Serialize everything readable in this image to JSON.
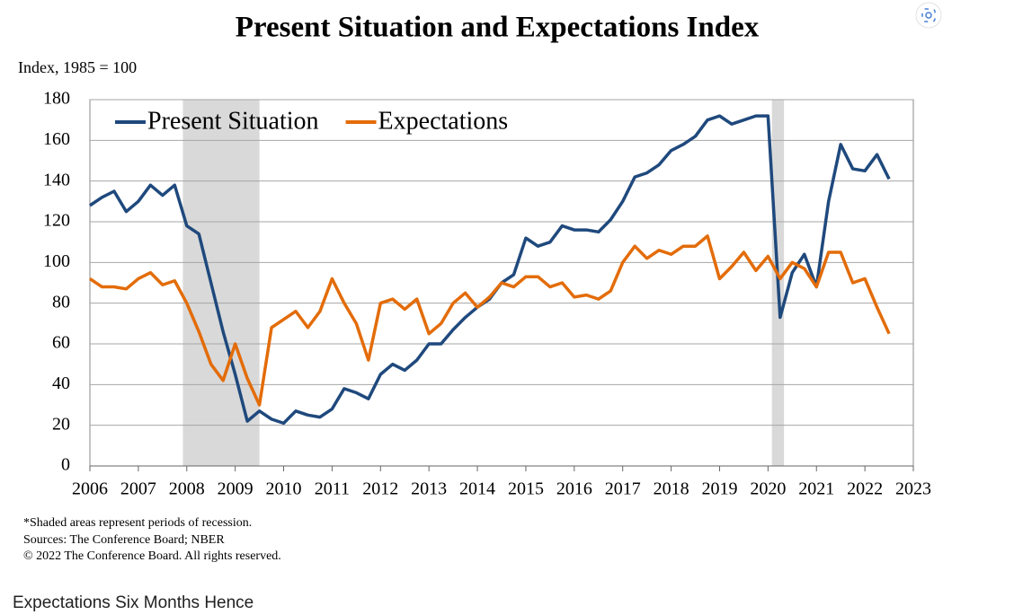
{
  "chart_data": {
    "type": "line",
    "title": "Present Situation and Expectations Index",
    "y_label": "Index, 1985 = 100",
    "x": [
      2006,
      2006.25,
      2006.5,
      2006.75,
      2007,
      2007.25,
      2007.5,
      2007.75,
      2008,
      2008.25,
      2008.5,
      2008.75,
      2009,
      2009.25,
      2009.5,
      2009.75,
      2010,
      2010.25,
      2010.5,
      2010.75,
      2011,
      2011.25,
      2011.5,
      2011.75,
      2012,
      2012.25,
      2012.5,
      2012.75,
      2013,
      2013.25,
      2013.5,
      2013.75,
      2014,
      2014.25,
      2014.5,
      2014.75,
      2015,
      2015.25,
      2015.5,
      2015.75,
      2016,
      2016.25,
      2016.5,
      2016.75,
      2017,
      2017.25,
      2017.5,
      2017.75,
      2018,
      2018.25,
      2018.5,
      2018.75,
      2019,
      2019.25,
      2019.5,
      2019.75,
      2020,
      2020.25,
      2020.5,
      2020.75,
      2021,
      2021.25,
      2021.5,
      2021.75,
      2022,
      2022.25,
      2022.5
    ],
    "series": [
      {
        "name": "Present Situation",
        "color": "#1f497d",
        "values": [
          128,
          132,
          135,
          125,
          130,
          138,
          133,
          138,
          118,
          114,
          90,
          66,
          45,
          22,
          27,
          23,
          21,
          27,
          25,
          24,
          28,
          38,
          36,
          33,
          45,
          50,
          47,
          52,
          60,
          60,
          67,
          73,
          78,
          82,
          90,
          94,
          112,
          108,
          110,
          118,
          116,
          116,
          115,
          121,
          130,
          142,
          144,
          148,
          155,
          158,
          162,
          170,
          172,
          168,
          170,
          172,
          172,
          73,
          95,
          104,
          88,
          130,
          158,
          146,
          145,
          153,
          141
        ]
      },
      {
        "name": "Expectations",
        "color": "#e36c09",
        "values": [
          92,
          88,
          88,
          87,
          92,
          95,
          89,
          91,
          80,
          66,
          50,
          42,
          60,
          43,
          30,
          68,
          72,
          76,
          68,
          76,
          92,
          80,
          70,
          52,
          80,
          82,
          77,
          82,
          65,
          70,
          80,
          85,
          78,
          83,
          90,
          88,
          93,
          93,
          88,
          90,
          83,
          84,
          82,
          86,
          100,
          108,
          102,
          106,
          104,
          108,
          108,
          113,
          92,
          98,
          105,
          96,
          103,
          92,
          100,
          97,
          88,
          105,
          105,
          90,
          92,
          78,
          65
        ]
      }
    ],
    "recessions": [
      [
        2007.92,
        2009.5
      ],
      [
        2020.08,
        2020.33
      ]
    ],
    "xlim": [
      2006,
      2023
    ],
    "xticks": [
      2006,
      2007,
      2008,
      2009,
      2010,
      2011,
      2012,
      2013,
      2014,
      2015,
      2016,
      2017,
      2018,
      2019,
      2020,
      2021,
      2022,
      2023
    ],
    "ylim": [
      0,
      180
    ],
    "yticks": [
      0,
      20,
      40,
      60,
      80,
      100,
      120,
      140,
      160,
      180
    ],
    "grid": true,
    "legend": "top-left",
    "notes": [
      "*Shaded areas represent periods of recession.",
      "Sources: The Conference Board; NBER",
      "© 2022 The Conference Board. All rights reserved."
    ]
  },
  "page": {
    "footer_heading": "Expectations Six Months Hence"
  }
}
